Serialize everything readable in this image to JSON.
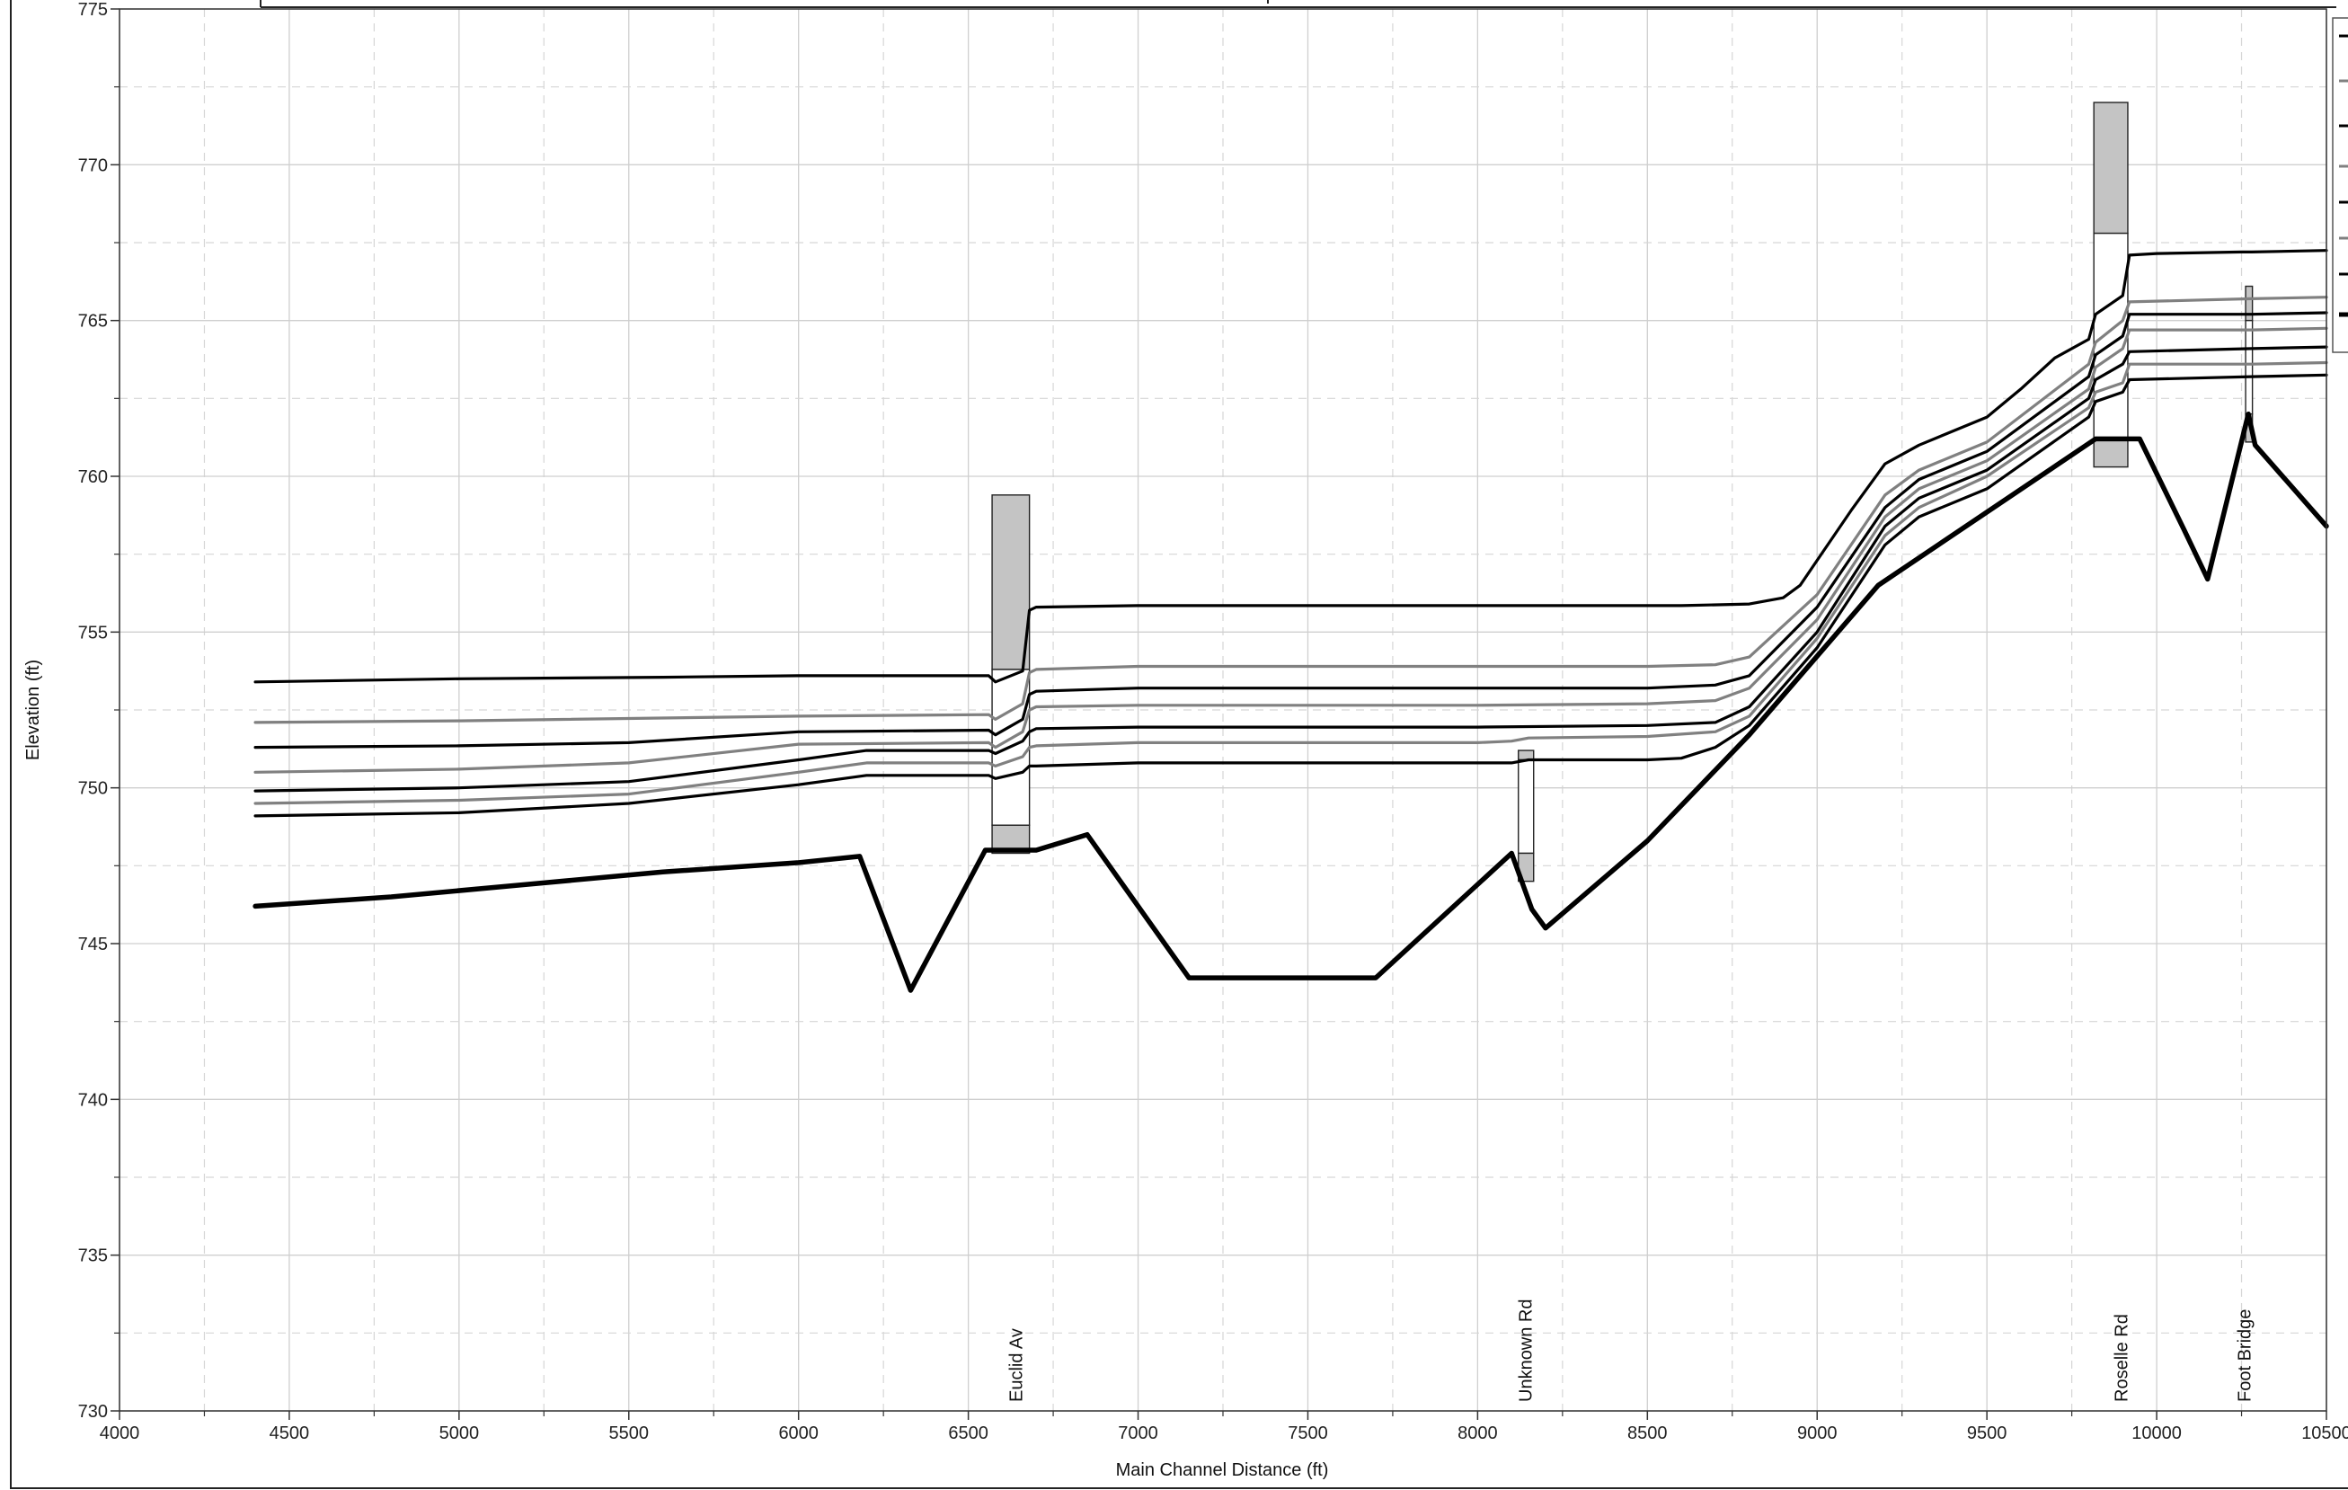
{
  "chart_data": {
    "type": "line",
    "title": "",
    "xlabel": "Main Channel Distance (ft)",
    "ylabel": "Elevation (ft)",
    "xlim": [
      4000,
      10500
    ],
    "ylim": [
      730,
      775
    ],
    "x_ticks": [
      4000,
      4500,
      5000,
      5500,
      6000,
      6500,
      7000,
      7500,
      8000,
      8500,
      9000,
      9500,
      10000,
      10500
    ],
    "y_ticks": [
      730,
      735,
      740,
      745,
      750,
      755,
      760,
      765,
      770,
      775
    ],
    "grid": true,
    "legend": "right (clipped)",
    "series": [
      {
        "color": "#000000",
        "width": 3.2,
        "points": [
          [
            4400,
            753.4
          ],
          [
            5000,
            753.5
          ],
          [
            5600,
            753.55
          ],
          [
            6000,
            753.6
          ],
          [
            6560,
            753.6
          ],
          [
            6580,
            753.4
          ],
          [
            6660,
            753.75
          ],
          [
            6680,
            755.7
          ],
          [
            6700,
            755.8
          ],
          [
            7000,
            755.85
          ],
          [
            8000,
            755.85
          ],
          [
            8600,
            755.85
          ],
          [
            8800,
            755.9
          ],
          [
            8900,
            756.1
          ],
          [
            8950,
            756.5
          ],
          [
            9100,
            758.9
          ],
          [
            9200,
            760.4
          ],
          [
            9300,
            761.0
          ],
          [
            9500,
            761.9
          ],
          [
            9600,
            762.8
          ],
          [
            9700,
            763.8
          ],
          [
            9800,
            764.4
          ],
          [
            9820,
            765.2
          ],
          [
            9900,
            765.8
          ],
          [
            9920,
            767.1
          ],
          [
            10000,
            767.15
          ],
          [
            10250,
            767.2
          ],
          [
            10280,
            767.2
          ],
          [
            10500,
            767.25
          ]
        ]
      },
      {
        "color": "#808080",
        "width": 3.2,
        "points": [
          [
            4400,
            752.1
          ],
          [
            5000,
            752.15
          ],
          [
            6000,
            752.3
          ],
          [
            6560,
            752.35
          ],
          [
            6580,
            752.2
          ],
          [
            6660,
            752.7
          ],
          [
            6680,
            753.7
          ],
          [
            6700,
            753.8
          ],
          [
            7000,
            753.9
          ],
          [
            8000,
            753.9
          ],
          [
            8500,
            753.9
          ],
          [
            8700,
            753.95
          ],
          [
            8800,
            754.2
          ],
          [
            9000,
            756.2
          ],
          [
            9200,
            759.4
          ],
          [
            9300,
            760.2
          ],
          [
            9500,
            761.1
          ],
          [
            9800,
            763.6
          ],
          [
            9820,
            764.3
          ],
          [
            9900,
            765.0
          ],
          [
            9920,
            765.6
          ],
          [
            10280,
            765.7
          ],
          [
            10500,
            765.75
          ]
        ]
      },
      {
        "color": "#000000",
        "width": 3.2,
        "points": [
          [
            4400,
            751.3
          ],
          [
            5000,
            751.35
          ],
          [
            5500,
            751.45
          ],
          [
            6000,
            751.8
          ],
          [
            6560,
            751.85
          ],
          [
            6580,
            751.7
          ],
          [
            6660,
            752.2
          ],
          [
            6680,
            753.0
          ],
          [
            6700,
            753.1
          ],
          [
            7000,
            753.2
          ],
          [
            8000,
            753.2
          ],
          [
            8500,
            753.2
          ],
          [
            8700,
            753.3
          ],
          [
            8800,
            753.6
          ],
          [
            9000,
            755.8
          ],
          [
            9200,
            759.0
          ],
          [
            9300,
            759.9
          ],
          [
            9500,
            760.8
          ],
          [
            9800,
            763.2
          ],
          [
            9820,
            763.9
          ],
          [
            9900,
            764.5
          ],
          [
            9920,
            765.2
          ],
          [
            10280,
            765.2
          ],
          [
            10500,
            765.25
          ]
        ]
      },
      {
        "color": "#808080",
        "width": 3.2,
        "points": [
          [
            4400,
            750.5
          ],
          [
            5000,
            750.6
          ],
          [
            5500,
            750.8
          ],
          [
            6000,
            751.4
          ],
          [
            6560,
            751.45
          ],
          [
            6580,
            751.3
          ],
          [
            6660,
            751.8
          ],
          [
            6680,
            752.5
          ],
          [
            6700,
            752.6
          ],
          [
            7000,
            752.65
          ],
          [
            8000,
            752.65
          ],
          [
            8500,
            752.7
          ],
          [
            8700,
            752.8
          ],
          [
            8800,
            753.2
          ],
          [
            9000,
            755.4
          ],
          [
            9200,
            758.7
          ],
          [
            9300,
            759.6
          ],
          [
            9500,
            760.5
          ],
          [
            9800,
            762.8
          ],
          [
            9820,
            763.5
          ],
          [
            9900,
            764.1
          ],
          [
            9920,
            764.7
          ],
          [
            10280,
            764.7
          ],
          [
            10500,
            764.75
          ]
        ]
      },
      {
        "color": "#000000",
        "width": 3.2,
        "points": [
          [
            4400,
            749.9
          ],
          [
            5000,
            750.0
          ],
          [
            5500,
            750.2
          ],
          [
            6000,
            750.9
          ],
          [
            6200,
            751.2
          ],
          [
            6560,
            751.2
          ],
          [
            6580,
            751.1
          ],
          [
            6660,
            751.5
          ],
          [
            6680,
            751.8
          ],
          [
            6700,
            751.9
          ],
          [
            7000,
            751.95
          ],
          [
            8000,
            751.95
          ],
          [
            8500,
            752.0
          ],
          [
            8700,
            752.1
          ],
          [
            8800,
            752.6
          ],
          [
            9000,
            755.0
          ],
          [
            9200,
            758.4
          ],
          [
            9300,
            759.3
          ],
          [
            9500,
            760.2
          ],
          [
            9800,
            762.5
          ],
          [
            9820,
            763.1
          ],
          [
            9900,
            763.6
          ],
          [
            9920,
            764.0
          ],
          [
            10280,
            764.1
          ],
          [
            10500,
            764.15
          ]
        ]
      },
      {
        "color": "#808080",
        "width": 3.2,
        "points": [
          [
            4400,
            749.5
          ],
          [
            5000,
            749.6
          ],
          [
            5500,
            749.8
          ],
          [
            6000,
            750.5
          ],
          [
            6200,
            750.8
          ],
          [
            6560,
            750.8
          ],
          [
            6580,
            750.7
          ],
          [
            6660,
            751.0
          ],
          [
            6680,
            751.3
          ],
          [
            6700,
            751.35
          ],
          [
            7000,
            751.45
          ],
          [
            8000,
            751.45
          ],
          [
            8100,
            751.5
          ],
          [
            8150,
            751.6
          ],
          [
            8500,
            751.65
          ],
          [
            8700,
            751.8
          ],
          [
            8800,
            752.3
          ],
          [
            9000,
            754.8
          ],
          [
            9200,
            758.1
          ],
          [
            9300,
            759.0
          ],
          [
            9500,
            760.0
          ],
          [
            9800,
            762.2
          ],
          [
            9820,
            762.7
          ],
          [
            9900,
            763.0
          ],
          [
            9920,
            763.6
          ],
          [
            10280,
            763.6
          ],
          [
            10500,
            763.65
          ]
        ]
      },
      {
        "color": "#000000",
        "width": 3.2,
        "points": [
          [
            4400,
            749.1
          ],
          [
            5000,
            749.2
          ],
          [
            5500,
            749.5
          ],
          [
            6000,
            750.1
          ],
          [
            6200,
            750.4
          ],
          [
            6560,
            750.4
          ],
          [
            6580,
            750.3
          ],
          [
            6660,
            750.5
          ],
          [
            6680,
            750.7
          ],
          [
            6700,
            750.7
          ],
          [
            7000,
            750.8
          ],
          [
            8000,
            750.8
          ],
          [
            8100,
            750.8
          ],
          [
            8150,
            750.9
          ],
          [
            8500,
            750.9
          ],
          [
            8600,
            750.95
          ],
          [
            8700,
            751.3
          ],
          [
            8800,
            752.0
          ],
          [
            9000,
            754.5
          ],
          [
            9200,
            757.8
          ],
          [
            9300,
            758.7
          ],
          [
            9500,
            759.6
          ],
          [
            9800,
            761.9
          ],
          [
            9820,
            762.4
          ],
          [
            9900,
            762.7
          ],
          [
            9920,
            763.1
          ],
          [
            10280,
            763.2
          ],
          [
            10500,
            763.25
          ]
        ]
      },
      {
        "color": "#000000",
        "width": 5.5,
        "points": [
          [
            4400,
            746.2
          ],
          [
            4800,
            746.5
          ],
          [
            5200,
            746.9
          ],
          [
            5600,
            747.3
          ],
          [
            6000,
            747.6
          ],
          [
            6180,
            747.8
          ],
          [
            6330,
            743.5
          ],
          [
            6550,
            748.0
          ],
          [
            6700,
            748.0
          ],
          [
            6850,
            748.5
          ],
          [
            7150,
            743.9
          ],
          [
            7700,
            743.9
          ],
          [
            8100,
            747.9
          ],
          [
            8160,
            746.1
          ],
          [
            8200,
            745.5
          ],
          [
            8500,
            748.3
          ],
          [
            8800,
            751.7
          ],
          [
            9180,
            756.5
          ],
          [
            9820,
            761.2
          ],
          [
            9950,
            761.2
          ],
          [
            10080,
            758.3
          ],
          [
            10150,
            756.7
          ],
          [
            10270,
            762.0
          ],
          [
            10290,
            761.0
          ],
          [
            10500,
            758.4
          ]
        ]
      }
    ],
    "bridges": [
      {
        "name": "Euclid Av",
        "x1": 6570,
        "x2": 6680,
        "low_chord": 748.8,
        "deck_bottom": 753.8,
        "deck_top": 759.4,
        "label_x": 6640
      },
      {
        "name": "Unknown Rd",
        "x1": 8120,
        "x2": 8165,
        "low_chord": 747.9,
        "deck_bottom": 750.9,
        "deck_top": 751.2,
        "label_x": 8140
      },
      {
        "name": "Roselle Rd",
        "x1": 9815,
        "x2": 9915,
        "low_chord": 761.2,
        "deck_bottom": 767.8,
        "deck_top": 772.0,
        "label_x": 9895
      },
      {
        "name": "Foot Bridge",
        "x1": 10262,
        "x2": 10282,
        "low_chord": 762.0,
        "deck_bottom": 765.0,
        "deck_top": 766.1,
        "label_x": 10258
      }
    ]
  }
}
